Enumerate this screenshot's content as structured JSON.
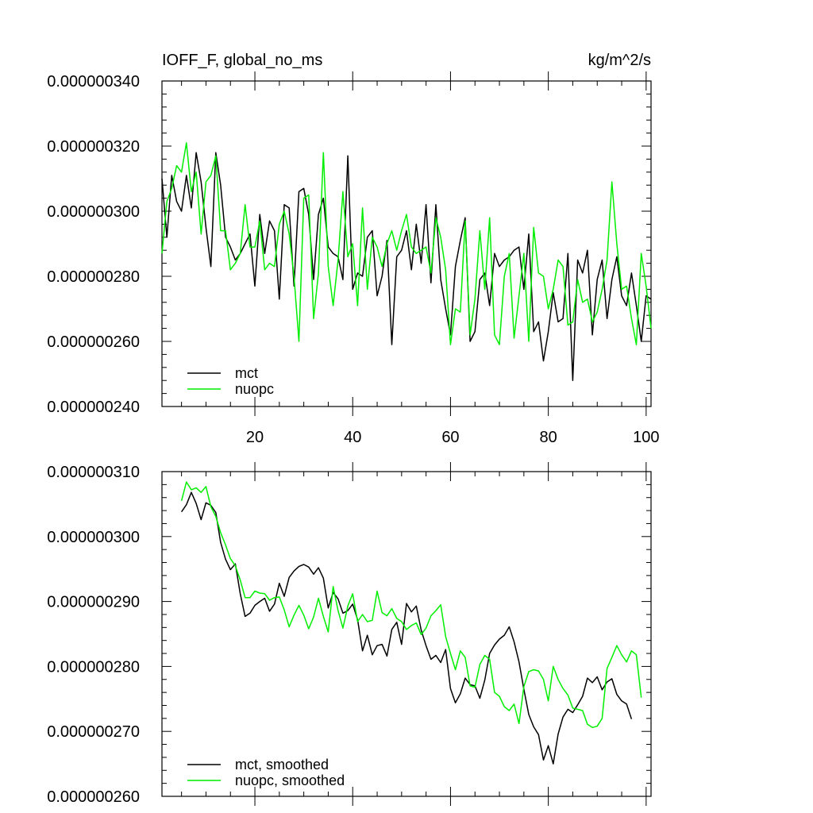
{
  "colors": {
    "mct": "#000000",
    "nuopc": "#00ee00",
    "axis": "#000000"
  },
  "chart_data": [
    {
      "type": "line",
      "title_left": "IOFF_F, global_no_ms",
      "title_right": "kg/m^2/s",
      "xlim": [
        1,
        101
      ],
      "ylim": [
        2.4e-07,
        3.4e-07
      ],
      "xticks": [
        20,
        40,
        60,
        80,
        100
      ],
      "xtick_labels": [
        "20",
        "40",
        "60",
        "80",
        "100"
      ],
      "show_x_tick_labels": true,
      "yticks": [
        2.4e-07,
        2.6e-07,
        2.8e-07,
        3e-07,
        3.2e-07,
        3.4e-07
      ],
      "ytick_labels": [
        "0.000000240",
        "0.000000260",
        "0.000000280",
        "0.000000300",
        "0.000000320",
        "0.000000340"
      ],
      "legend_position": "bottom-left",
      "grid": false,
      "series": [
        {
          "name": "mct",
          "color": "#000000",
          "x_start": 1,
          "values": [
            310,
            292,
            311,
            303,
            300,
            311,
            301,
            318,
            309,
            295,
            283,
            318,
            308,
            292,
            289,
            285,
            287,
            290,
            293,
            277,
            299,
            287,
            297,
            294,
            273,
            302,
            301,
            277,
            306,
            307,
            299,
            279,
            299,
            304,
            289,
            287,
            286,
            279,
            317,
            276,
            281,
            280,
            292,
            294,
            274,
            280,
            291,
            259,
            286,
            288,
            294,
            282,
            296,
            284,
            302,
            278,
            302,
            279,
            270,
            262,
            283,
            291,
            298,
            260,
            263,
            279,
            281,
            271,
            287,
            283,
            285,
            286,
            288,
            289,
            276,
            293,
            263,
            266,
            254,
            263,
            275,
            266,
            267,
            287,
            248,
            285,
            281,
            288,
            262,
            279,
            285,
            267,
            279,
            286,
            274,
            271,
            281,
            271,
            260,
            274,
            273
          ]
        },
        {
          "name": "nuopc",
          "color": "#00ee00",
          "x_start": 1,
          "values": [
            287,
            303,
            307,
            314,
            312,
            321,
            306,
            312,
            293,
            309,
            311,
            317,
            294,
            294,
            282,
            284,
            287,
            302,
            289,
            289,
            297,
            282,
            284,
            283,
            296,
            300,
            293,
            280,
            260,
            304,
            305,
            267,
            281,
            318,
            283,
            271,
            285,
            306,
            286,
            290,
            271,
            301,
            276,
            292,
            289,
            283,
            290,
            294,
            288,
            294,
            299,
            289,
            287,
            288,
            289,
            281,
            298,
            292,
            282,
            259,
            270,
            269,
            297,
            262,
            273,
            294,
            276,
            298,
            262,
            259,
            280,
            287,
            261,
            274,
            287,
            260,
            295,
            281,
            280,
            270,
            276,
            285,
            283,
            265,
            266,
            279,
            272,
            273,
            266,
            269,
            276,
            285,
            309,
            290,
            276,
            277,
            267,
            259,
            287,
            277,
            264
          ]
        }
      ]
    },
    {
      "type": "line",
      "title_left": "",
      "title_right": "",
      "xlim": [
        1,
        101
      ],
      "ylim": [
        2.6e-07,
        3.1e-07
      ],
      "xticks": [
        20,
        40,
        60,
        80,
        100
      ],
      "xtick_labels": [],
      "show_x_tick_labels": false,
      "yticks": [
        2.6e-07,
        2.7e-07,
        2.8e-07,
        2.9e-07,
        3e-07,
        3.1e-07
      ],
      "ytick_labels": [
        "0.000000260",
        "0.000000270",
        "0.000000280",
        "0.000000290",
        "0.000000300",
        "0.000000310"
      ],
      "legend_position": "bottom-left",
      "grid": false,
      "series": [
        {
          "name": "mct, smoothed",
          "color": "#000000",
          "x_start": 5,
          "values": [
            303.8,
            304.9,
            306.8,
            305.1,
            302.6,
            305.2,
            304.8,
            303.7,
            299.1,
            296.5,
            294.9,
            295.8,
            291.2,
            287.7,
            288.2,
            289.4,
            290.0,
            290.5,
            288.5,
            289.6,
            292.8,
            290.8,
            293.7,
            294.7,
            295.4,
            295.7,
            295.3,
            294.2,
            295.2,
            293.6,
            289.0,
            291.4,
            290.4,
            288.2,
            288.6,
            289.6,
            287.2,
            282.4,
            284.8,
            281.8,
            283.2,
            283.4,
            281.6,
            285.7,
            286.8,
            283.4,
            289.7,
            288.4,
            289.3,
            285.6,
            283.2,
            281.1,
            281.7,
            280.6,
            282.6,
            276.6,
            274.4,
            275.8,
            278.2,
            277.2,
            277.0,
            275.1,
            277.9,
            282.0,
            283.3,
            284.2,
            284.8,
            286.1,
            283.8,
            280.7,
            276.5,
            272.6,
            270.7,
            269.5,
            265.6,
            267.8,
            265.0,
            269.6,
            272.2,
            273.4,
            272.9,
            274.1,
            275.4,
            278.2,
            277.5,
            278.4,
            276.4,
            277.6,
            278.1,
            275.7,
            274.7,
            274.2,
            271.9
          ]
        },
        {
          "name": "nuopc, smoothed",
          "color": "#00ee00",
          "x_start": 5,
          "values": [
            305.5,
            308.4,
            307.2,
            307.5,
            306.8,
            307.7,
            304.6,
            303.1,
            300.6,
            298.7,
            296.6,
            295.5,
            293.3,
            290.6,
            290.6,
            291.6,
            291.3,
            291.2,
            290.2,
            290.6,
            290.7,
            288.7,
            286.1,
            287.9,
            289.4,
            287.9,
            285.8,
            287.6,
            290.5,
            287.7,
            285.3,
            292.3,
            288.6,
            285.9,
            289.3,
            291.2,
            286.9,
            288.0,
            286.9,
            287.1,
            291.6,
            288.3,
            287.8,
            288.9,
            287.4,
            286.9,
            285.7,
            286.3,
            286.7,
            284.9,
            285.9,
            287.8,
            288.6,
            289.5,
            284.6,
            282.0,
            279.5,
            282.4,
            281.4,
            277.0,
            276.8,
            280.3,
            281.7,
            281.1,
            276.0,
            275.4,
            273.8,
            273.2,
            274.2,
            271.2,
            276.9,
            279.2,
            279.5,
            279.3,
            278.0,
            274.7,
            280.0,
            278.0,
            276.6,
            275.6,
            273.6,
            273.4,
            273.2,
            271.1,
            270.6,
            270.8,
            272.0,
            279.7,
            281.4,
            283.2,
            281.8,
            280.7,
            282.4,
            281.8,
            275.2
          ]
        }
      ]
    }
  ]
}
